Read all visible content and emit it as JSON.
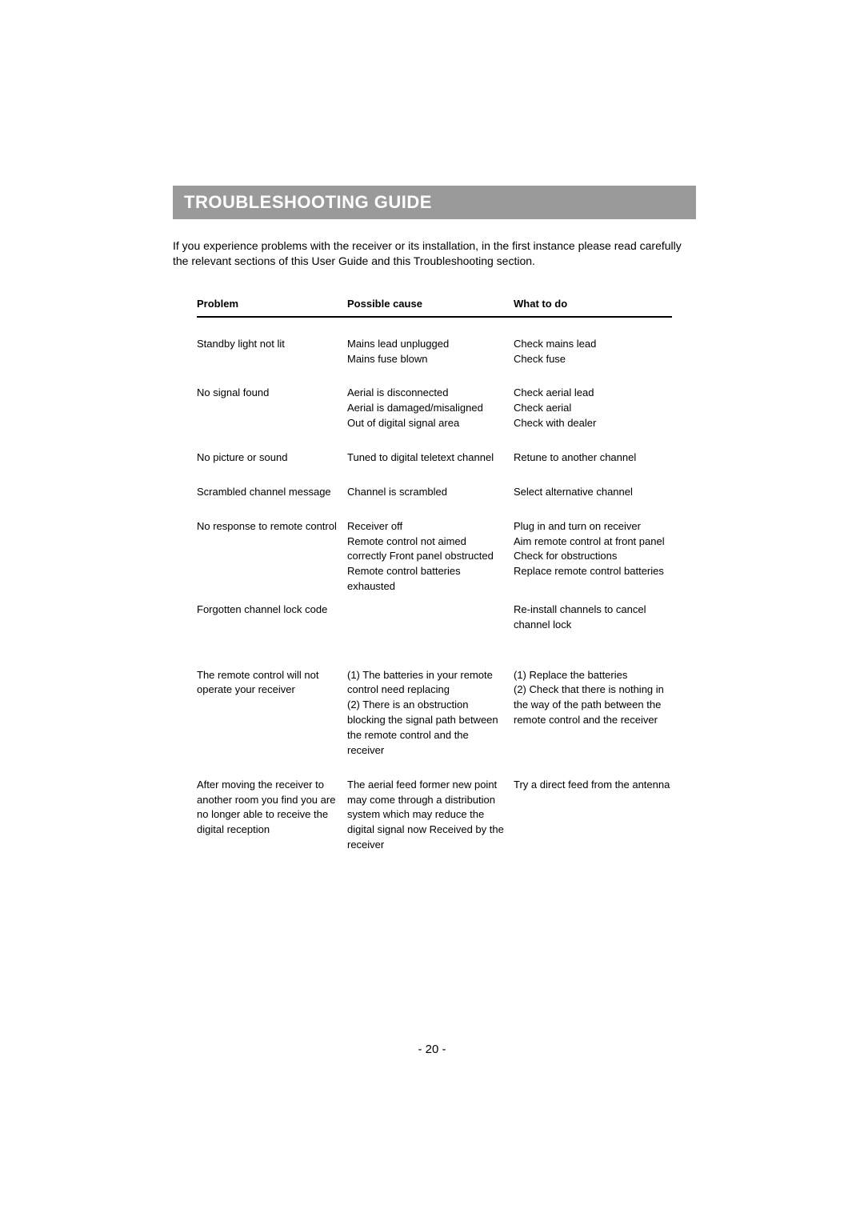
{
  "title": "TROUBLESHOOTING GUIDE",
  "intro": "If you experience problems with the receiver or its installation, in the first instance please read carefully the relevant sections of this User Guide and this Troubleshooting section.",
  "headers": {
    "problem": "Problem",
    "cause": "Possible cause",
    "action": "What to do"
  },
  "rows": [
    {
      "problem": "Standby light not lit",
      "cause": "Mains lead unplugged\nMains fuse blown",
      "action": "Check mains lead\nCheck fuse"
    },
    {
      "problem": "No signal found",
      "cause": "Aerial is disconnected\nAerial is damaged/misaligned\nOut of digital signal area",
      "action": "Check aerial lead\nCheck aerial\nCheck with dealer"
    },
    {
      "problem": "No picture or sound",
      "cause": "Tuned to digital teletext channel",
      "action": "Retune to another channel"
    },
    {
      "problem": "Scrambled channel message",
      "cause": "Channel is scrambled",
      "action": "Select alternative channel"
    },
    {
      "problem": "No response to remote control",
      "cause": "Receiver off\nRemote control not aimed correctly Front panel obstructed\nRemote control batteries exhausted",
      "action": "Plug in and turn on receiver\nAim remote control at front panel\nCheck for obstructions\nReplace remote control batteries"
    },
    {
      "problem": "Forgotten channel lock code",
      "cause": "",
      "action": "Re-install channels to cancel channel lock"
    },
    {
      "problem": "The remote control will not operate your receiver",
      "cause": "(1) The batteries in your remote control need replacing\n(2) There is an obstruction blocking the signal path between the remote control and the receiver",
      "action": "(1) Replace the batteries\n(2) Check that there is nothing in the way of the path between the remote control and the receiver"
    },
    {
      "problem": "After moving the receiver to another room you find you are no longer able to receive the digital reception",
      "cause": "The aerial feed former new point may come through a distribution system which may reduce the digital signal now Received by the receiver",
      "action": "Try a direct feed from the antenna"
    }
  ],
  "page_number": "- 20 -",
  "colors": {
    "title_bg": "#9a9a9a",
    "title_fg": "#ffffff",
    "text": "#000000",
    "page_bg": "#ffffff"
  },
  "fonts": {
    "title_size": 22,
    "body_size": 14,
    "table_size": 13
  }
}
